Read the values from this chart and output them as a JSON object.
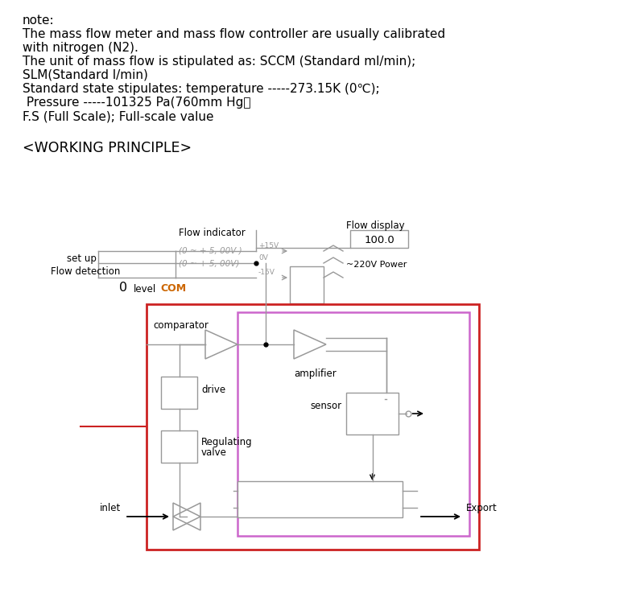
{
  "bg_color": "#ffffff",
  "text_color": "#000000",
  "gray_color": "#999999",
  "dark_gray": "#666666",
  "red_color": "#cc2222",
  "pink_color": "#cc66cc",
  "com_color": "#cc6600",
  "note_lines": [
    "note:",
    "The mass flow meter and mass flow controller are usually calibrated",
    "with nitrogen (N2).",
    "The unit of mass flow is stipulated as: SCCM (Standard ml/min);",
    "SLM(Standard l/min)",
    "Standard state stipulates: temperature -----273.15K (0℃);",
    " Pressure -----101325 Pa(760mm Hg）",
    "F.S (Full Scale); Full-scale value"
  ],
  "working_principle": "<WORKING PRINCIPLE>",
  "font_note": 11.0,
  "font_title": 12.5,
  "font_diag": 8.5
}
